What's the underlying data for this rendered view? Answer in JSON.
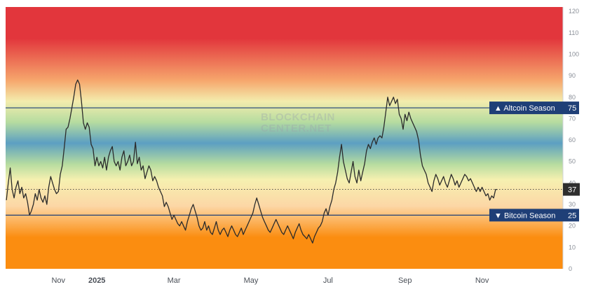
{
  "chart_data": {
    "type": "line",
    "title": "",
    "xlabel": "",
    "ylabel": "",
    "ylim": [
      0,
      122
    ],
    "y_ticks": [
      0,
      10,
      20,
      30,
      40,
      50,
      60,
      70,
      80,
      90,
      100,
      110,
      120
    ],
    "x_ticks": [
      {
        "label": "Nov",
        "x": 2.0,
        "bold": false
      },
      {
        "label": "2025",
        "x": 3.0,
        "bold": true
      },
      {
        "label": "Mar",
        "x": 5.0,
        "bold": false
      },
      {
        "label": "May",
        "x": 7.0,
        "bold": false
      },
      {
        "label": "Jul",
        "x": 9.0,
        "bold": false
      },
      {
        "label": "Sep",
        "x": 11.0,
        "bold": false
      },
      {
        "label": "Nov",
        "x": 13.0,
        "bold": false
      }
    ],
    "x_range": [
      0.63,
      15.1
    ],
    "series": [
      {
        "name": "",
        "color": "#2b2b2b",
        "points": [
          [
            0.65,
            32
          ],
          [
            0.7,
            40
          ],
          [
            0.75,
            47
          ],
          [
            0.8,
            37
          ],
          [
            0.85,
            33
          ],
          [
            0.9,
            38
          ],
          [
            0.95,
            41
          ],
          [
            1.0,
            35
          ],
          [
            1.05,
            38
          ],
          [
            1.1,
            33
          ],
          [
            1.15,
            35
          ],
          [
            1.2,
            31
          ],
          [
            1.25,
            25
          ],
          [
            1.3,
            27
          ],
          [
            1.35,
            30
          ],
          [
            1.4,
            35
          ],
          [
            1.45,
            32
          ],
          [
            1.5,
            37
          ],
          [
            1.55,
            33
          ],
          [
            1.6,
            31
          ],
          [
            1.65,
            34
          ],
          [
            1.7,
            30
          ],
          [
            1.75,
            38
          ],
          [
            1.8,
            43
          ],
          [
            1.85,
            40
          ],
          [
            1.9,
            37
          ],
          [
            1.95,
            35
          ],
          [
            2.0,
            36
          ],
          [
            2.05,
            44
          ],
          [
            2.1,
            48
          ],
          [
            2.15,
            56
          ],
          [
            2.2,
            65
          ],
          [
            2.25,
            66
          ],
          [
            2.3,
            70
          ],
          [
            2.35,
            75
          ],
          [
            2.4,
            80
          ],
          [
            2.45,
            86
          ],
          [
            2.5,
            88
          ],
          [
            2.55,
            86
          ],
          [
            2.6,
            78
          ],
          [
            2.65,
            68
          ],
          [
            2.7,
            65
          ],
          [
            2.75,
            68
          ],
          [
            2.8,
            66
          ],
          [
            2.85,
            58
          ],
          [
            2.9,
            56
          ],
          [
            2.95,
            48
          ],
          [
            3.0,
            52
          ],
          [
            3.05,
            48
          ],
          [
            3.1,
            50
          ],
          [
            3.15,
            47
          ],
          [
            3.2,
            52
          ],
          [
            3.25,
            46
          ],
          [
            3.3,
            52
          ],
          [
            3.35,
            55
          ],
          [
            3.4,
            57
          ],
          [
            3.45,
            50
          ],
          [
            3.5,
            48
          ],
          [
            3.55,
            50
          ],
          [
            3.6,
            46
          ],
          [
            3.65,
            52
          ],
          [
            3.7,
            55
          ],
          [
            3.75,
            48
          ],
          [
            3.8,
            50
          ],
          [
            3.85,
            53
          ],
          [
            3.9,
            48
          ],
          [
            3.95,
            50
          ],
          [
            4.0,
            59
          ],
          [
            4.05,
            49
          ],
          [
            4.1,
            52
          ],
          [
            4.15,
            46
          ],
          [
            4.2,
            48
          ],
          [
            4.25,
            42
          ],
          [
            4.3,
            45
          ],
          [
            4.35,
            48
          ],
          [
            4.4,
            46
          ],
          [
            4.45,
            41
          ],
          [
            4.5,
            43
          ],
          [
            4.55,
            41
          ],
          [
            4.6,
            38
          ],
          [
            4.65,
            36
          ],
          [
            4.7,
            34
          ],
          [
            4.75,
            29
          ],
          [
            4.8,
            31
          ],
          [
            4.85,
            29
          ],
          [
            4.9,
            26
          ],
          [
            4.95,
            23
          ],
          [
            5.0,
            25
          ],
          [
            5.05,
            23
          ],
          [
            5.1,
            21
          ],
          [
            5.15,
            20
          ],
          [
            5.2,
            22
          ],
          [
            5.25,
            20
          ],
          [
            5.3,
            18
          ],
          [
            5.35,
            22
          ],
          [
            5.4,
            25
          ],
          [
            5.45,
            28
          ],
          [
            5.5,
            30
          ],
          [
            5.55,
            27
          ],
          [
            5.6,
            24
          ],
          [
            5.65,
            20
          ],
          [
            5.7,
            18
          ],
          [
            5.75,
            19
          ],
          [
            5.8,
            22
          ],
          [
            5.85,
            18
          ],
          [
            5.9,
            20
          ],
          [
            5.95,
            17
          ],
          [
            6.0,
            16
          ],
          [
            6.05,
            19
          ],
          [
            6.1,
            22
          ],
          [
            6.15,
            18
          ],
          [
            6.2,
            16
          ],
          [
            6.25,
            18
          ],
          [
            6.3,
            19
          ],
          [
            6.35,
            17
          ],
          [
            6.4,
            15
          ],
          [
            6.45,
            18
          ],
          [
            6.5,
            20
          ],
          [
            6.55,
            18
          ],
          [
            6.6,
            16
          ],
          [
            6.65,
            15
          ],
          [
            6.7,
            17
          ],
          [
            6.75,
            19
          ],
          [
            6.8,
            16
          ],
          [
            6.85,
            18
          ],
          [
            6.9,
            20
          ],
          [
            6.95,
            22
          ],
          [
            7.0,
            24
          ],
          [
            7.05,
            26
          ],
          [
            7.1,
            30
          ],
          [
            7.15,
            33
          ],
          [
            7.2,
            30
          ],
          [
            7.25,
            27
          ],
          [
            7.3,
            24
          ],
          [
            7.35,
            22
          ],
          [
            7.4,
            20
          ],
          [
            7.45,
            18
          ],
          [
            7.5,
            17
          ],
          [
            7.55,
            19
          ],
          [
            7.6,
            21
          ],
          [
            7.65,
            23
          ],
          [
            7.7,
            21
          ],
          [
            7.75,
            19
          ],
          [
            7.8,
            17
          ],
          [
            7.85,
            16
          ],
          [
            7.9,
            18
          ],
          [
            7.95,
            20
          ],
          [
            8.0,
            18
          ],
          [
            8.05,
            16
          ],
          [
            8.1,
            14
          ],
          [
            8.15,
            17
          ],
          [
            8.2,
            19
          ],
          [
            8.25,
            21
          ],
          [
            8.3,
            18
          ],
          [
            8.35,
            16
          ],
          [
            8.4,
            15
          ],
          [
            8.45,
            14
          ],
          [
            8.5,
            16
          ],
          [
            8.55,
            14
          ],
          [
            8.6,
            12
          ],
          [
            8.65,
            15
          ],
          [
            8.7,
            17
          ],
          [
            8.75,
            19
          ],
          [
            8.8,
            20
          ],
          [
            8.85,
            22
          ],
          [
            8.9,
            26
          ],
          [
            8.95,
            28
          ],
          [
            9.0,
            25
          ],
          [
            9.05,
            29
          ],
          [
            9.1,
            32
          ],
          [
            9.15,
            37
          ],
          [
            9.2,
            40
          ],
          [
            9.25,
            45
          ],
          [
            9.3,
            52
          ],
          [
            9.35,
            58
          ],
          [
            9.4,
            50
          ],
          [
            9.45,
            46
          ],
          [
            9.5,
            42
          ],
          [
            9.55,
            40
          ],
          [
            9.6,
            45
          ],
          [
            9.65,
            50
          ],
          [
            9.7,
            43
          ],
          [
            9.75,
            40
          ],
          [
            9.8,
            46
          ],
          [
            9.85,
            41
          ],
          [
            9.9,
            45
          ],
          [
            9.95,
            49
          ],
          [
            10.0,
            55
          ],
          [
            10.05,
            58
          ],
          [
            10.1,
            56
          ],
          [
            10.15,
            59
          ],
          [
            10.2,
            61
          ],
          [
            10.25,
            58
          ],
          [
            10.3,
            61
          ],
          [
            10.35,
            62
          ],
          [
            10.4,
            61
          ],
          [
            10.45,
            66
          ],
          [
            10.5,
            73
          ],
          [
            10.55,
            80
          ],
          [
            10.6,
            76
          ],
          [
            10.65,
            78
          ],
          [
            10.7,
            80
          ],
          [
            10.75,
            77
          ],
          [
            10.8,
            79
          ],
          [
            10.85,
            72
          ],
          [
            10.9,
            70
          ],
          [
            10.95,
            65
          ],
          [
            11.0,
            72
          ],
          [
            11.05,
            69
          ],
          [
            11.1,
            73
          ],
          [
            11.15,
            70
          ],
          [
            11.2,
            68
          ],
          [
            11.25,
            66
          ],
          [
            11.3,
            64
          ],
          [
            11.35,
            60
          ],
          [
            11.4,
            53
          ],
          [
            11.45,
            48
          ],
          [
            11.5,
            46
          ],
          [
            11.55,
            44
          ],
          [
            11.6,
            40
          ],
          [
            11.65,
            38
          ],
          [
            11.7,
            36
          ],
          [
            11.75,
            41
          ],
          [
            11.8,
            44
          ],
          [
            11.85,
            42
          ],
          [
            11.9,
            39
          ],
          [
            11.95,
            41
          ],
          [
            12.0,
            43
          ],
          [
            12.05,
            40
          ],
          [
            12.1,
            38
          ],
          [
            12.15,
            41
          ],
          [
            12.2,
            44
          ],
          [
            12.25,
            42
          ],
          [
            12.3,
            39
          ],
          [
            12.35,
            41
          ],
          [
            12.4,
            38
          ],
          [
            12.45,
            40
          ],
          [
            12.5,
            42
          ],
          [
            12.55,
            44
          ],
          [
            12.6,
            43
          ],
          [
            12.65,
            41
          ],
          [
            12.7,
            42
          ],
          [
            12.75,
            40
          ],
          [
            12.8,
            38
          ],
          [
            12.85,
            36
          ],
          [
            12.9,
            38
          ],
          [
            12.95,
            36
          ],
          [
            13.0,
            38
          ],
          [
            13.05,
            36
          ],
          [
            13.1,
            34
          ],
          [
            13.15,
            35
          ],
          [
            13.2,
            32
          ],
          [
            13.25,
            34
          ],
          [
            13.3,
            33
          ],
          [
            13.35,
            37
          ],
          [
            13.4,
            37
          ]
        ]
      }
    ],
    "reference_lines": [
      {
        "name": "altcoin",
        "value": 75,
        "label": "▲ Altcoin Season",
        "value_label": "75",
        "color": "#1f3f77"
      },
      {
        "name": "bitcoin",
        "value": 25,
        "label": "▼ Bitcoin Season",
        "value_label": "25",
        "color": "#1f3f77"
      }
    ],
    "current_value": {
      "value": 37,
      "label": "37"
    },
    "watermark": [
      "BLOCKCHAIN",
      "CENTER.NET"
    ],
    "gradient_colors": {
      "top_red": "#e2363c",
      "orange_high": "#f6a66c",
      "yellow_high": "#f3ecad",
      "green": "#b6dca0",
      "blue": "#5c9fc2",
      "yellow_low": "#f6f0b0",
      "peach": "#fcd7a6",
      "orange_low": "#fb8d10"
    },
    "grid": false,
    "legend": "none"
  }
}
